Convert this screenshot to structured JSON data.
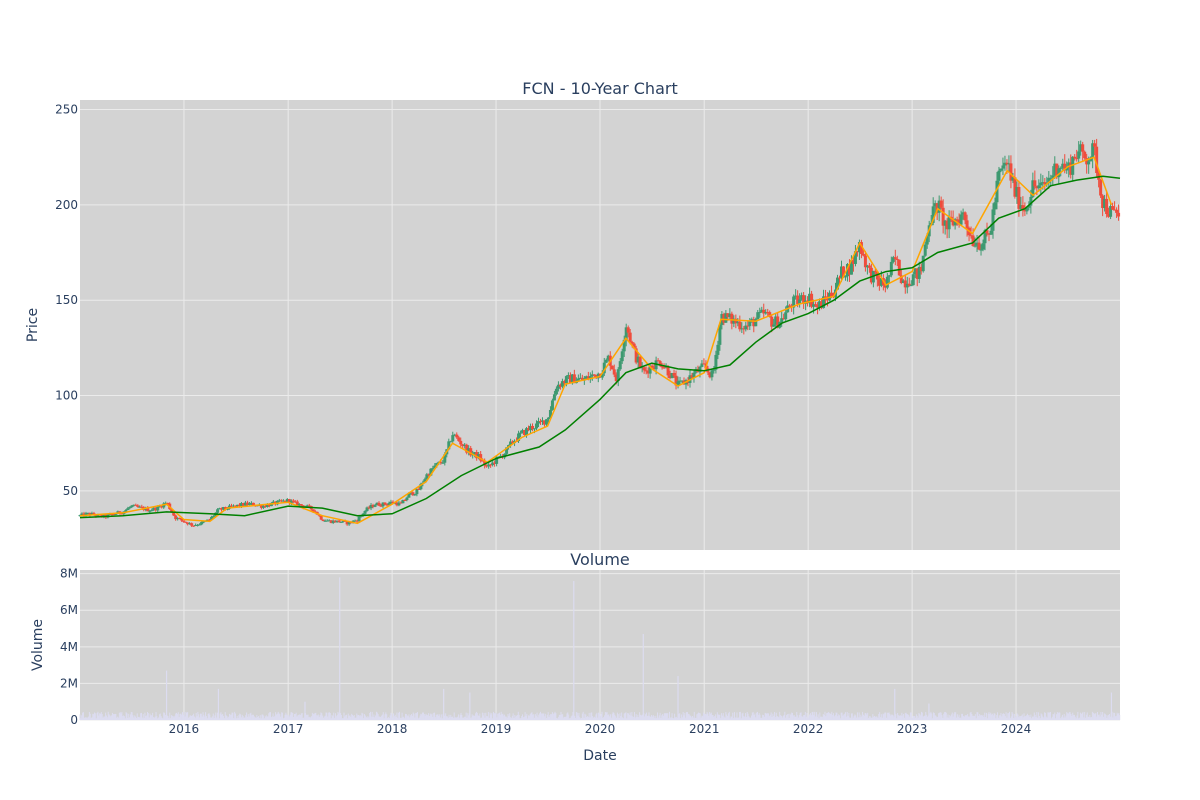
{
  "colors": {
    "background": "#ffffff",
    "plot_bg": "#d3d3d3",
    "grid": "#ebebeb",
    "text": "#2a3f5f",
    "up": "#3d9970",
    "down": "#ef4c3c",
    "ma_short": "#ffa500",
    "ma_long": "#008000",
    "volume_bar": "#dcdcf0"
  },
  "chart_data": [
    {
      "type": "candlestick",
      "title": "FCN - 10-Year Chart",
      "ylabel": "Price",
      "xlabel": "",
      "ylim": [
        19,
        255
      ],
      "xlim": [
        "2015-01-01",
        "2024-12-31"
      ],
      "x_tick_values": [
        "2016-01-01",
        "2017-01-01",
        "2018-01-01",
        "2019-01-01",
        "2020-01-01",
        "2021-01-01",
        "2022-01-01",
        "2023-01-01",
        "2024-01-01"
      ],
      "y_ticks": [
        50,
        100,
        150,
        200,
        250
      ],
      "grid": true,
      "series": [
        {
          "kind": "close",
          "points": [
            [
              "2015-01-01",
              37
            ],
            [
              "2015-02-01",
              38
            ],
            [
              "2015-03-01",
              37
            ],
            [
              "2015-04-01",
              36.5
            ],
            [
              "2015-05-01",
              38
            ],
            [
              "2015-06-01",
              39
            ],
            [
              "2015-07-01",
              42
            ],
            [
              "2015-08-01",
              41
            ],
            [
              "2015-09-01",
              40
            ],
            [
              "2015-10-01",
              41
            ],
            [
              "2015-11-01",
              44
            ],
            [
              "2015-12-01",
              36
            ],
            [
              "2016-01-01",
              34
            ],
            [
              "2016-02-01",
              32
            ],
            [
              "2016-03-01",
              33
            ],
            [
              "2016-04-01",
              35
            ],
            [
              "2016-05-01",
              40
            ],
            [
              "2016-06-01",
              41
            ],
            [
              "2016-07-01",
              42
            ],
            [
              "2016-08-01",
              43
            ],
            [
              "2016-09-01",
              43
            ],
            [
              "2016-10-01",
              42
            ],
            [
              "2016-11-01",
              43
            ],
            [
              "2016-12-01",
              44
            ],
            [
              "2017-01-01",
              45
            ],
            [
              "2017-02-01",
              43
            ],
            [
              "2017-03-01",
              42
            ],
            [
              "2017-04-01",
              40
            ],
            [
              "2017-05-01",
              35
            ],
            [
              "2017-06-01",
              34
            ],
            [
              "2017-07-01",
              34
            ],
            [
              "2017-08-01",
              33
            ],
            [
              "2017-09-01",
              35
            ],
            [
              "2017-10-01",
              40
            ],
            [
              "2017-11-01",
              43
            ],
            [
              "2017-12-01",
              43
            ],
            [
              "2018-01-01",
              44
            ],
            [
              "2018-02-01",
              43
            ],
            [
              "2018-03-01",
              48
            ],
            [
              "2018-04-01",
              50
            ],
            [
              "2018-05-01",
              58
            ],
            [
              "2018-06-01",
              63
            ],
            [
              "2018-07-01",
              66
            ],
            [
              "2018-08-01",
              80
            ],
            [
              "2018-09-01",
              75
            ],
            [
              "2018-10-01",
              70
            ],
            [
              "2018-11-01",
              68
            ],
            [
              "2018-12-01",
              62
            ],
            [
              "2019-01-01",
              66
            ],
            [
              "2019-02-01",
              70
            ],
            [
              "2019-03-01",
              76
            ],
            [
              "2019-04-01",
              80
            ],
            [
              "2019-05-01",
              83
            ],
            [
              "2019-06-01",
              85
            ],
            [
              "2019-07-01",
              88
            ],
            [
              "2019-08-01",
              105
            ],
            [
              "2019-09-01",
              108
            ],
            [
              "2019-10-01",
              109
            ],
            [
              "2019-11-01",
              108
            ],
            [
              "2019-12-01",
              110
            ],
            [
              "2020-01-01",
              112
            ],
            [
              "2020-02-01",
              120
            ],
            [
              "2020-03-01",
              108
            ],
            [
              "2020-04-01",
              138
            ],
            [
              "2020-05-01",
              122
            ],
            [
              "2020-06-01",
              112
            ],
            [
              "2020-07-01",
              116
            ],
            [
              "2020-08-01",
              118
            ],
            [
              "2020-09-01",
              112
            ],
            [
              "2020-10-01",
              105
            ],
            [
              "2020-11-01",
              108
            ],
            [
              "2020-12-01",
              112
            ],
            [
              "2021-01-01",
              115
            ],
            [
              "2021-02-01",
              110
            ],
            [
              "2021-03-01",
              142
            ],
            [
              "2021-04-01",
              140
            ],
            [
              "2021-05-01",
              138
            ],
            [
              "2021-06-01",
              136
            ],
            [
              "2021-07-01",
              140
            ],
            [
              "2021-08-01",
              143
            ],
            [
              "2021-09-01",
              138
            ],
            [
              "2021-10-01",
              140
            ],
            [
              "2021-11-01",
              148
            ],
            [
              "2021-12-01",
              150
            ],
            [
              "2022-01-01",
              152
            ],
            [
              "2022-02-01",
              146
            ],
            [
              "2022-03-01",
              150
            ],
            [
              "2022-04-01",
              155
            ],
            [
              "2022-05-01",
              165
            ],
            [
              "2022-06-01",
              168
            ],
            [
              "2022-07-01",
              180
            ],
            [
              "2022-08-01",
              165
            ],
            [
              "2022-09-01",
              160
            ],
            [
              "2022-10-01",
              158
            ],
            [
              "2022-11-01",
              172
            ],
            [
              "2022-12-01",
              160
            ],
            [
              "2023-01-01",
              162
            ],
            [
              "2023-02-01",
              165
            ],
            [
              "2023-03-01",
              192
            ],
            [
              "2023-04-01",
              200
            ],
            [
              "2023-05-01",
              188
            ],
            [
              "2023-06-01",
              192
            ],
            [
              "2023-07-01",
              195
            ],
            [
              "2023-08-01",
              182
            ],
            [
              "2023-09-01",
              180
            ],
            [
              "2023-10-01",
              185
            ],
            [
              "2023-11-01",
              215
            ],
            [
              "2023-12-01",
              222
            ],
            [
              "2024-01-01",
              205
            ],
            [
              "2024-02-01",
              198
            ],
            [
              "2024-03-01",
              210
            ],
            [
              "2024-04-01",
              208
            ],
            [
              "2024-05-01",
              215
            ],
            [
              "2024-06-01",
              222
            ],
            [
              "2024-07-01",
              218
            ],
            [
              "2024-08-01",
              228
            ],
            [
              "2024-09-01",
              225
            ],
            [
              "2024-10-01",
              228
            ],
            [
              "2024-11-01",
              202
            ],
            [
              "2024-12-01",
              195
            ]
          ]
        },
        {
          "kind": "ma_short",
          "points": [
            [
              "2015-01-01",
              37
            ],
            [
              "2015-06-01",
              38.5
            ],
            [
              "2015-11-01",
              43
            ],
            [
              "2016-01-01",
              35
            ],
            [
              "2016-04-01",
              34
            ],
            [
              "2016-06-01",
              41
            ],
            [
              "2017-01-01",
              44
            ],
            [
              "2017-05-01",
              37
            ],
            [
              "2017-09-01",
              33
            ],
            [
              "2018-01-01",
              43
            ],
            [
              "2018-05-01",
              55
            ],
            [
              "2018-08-01",
              75
            ],
            [
              "2018-12-01",
              65
            ],
            [
              "2019-04-01",
              78
            ],
            [
              "2019-07-01",
              84
            ],
            [
              "2019-09-01",
              106
            ],
            [
              "2020-01-01",
              110
            ],
            [
              "2020-04-01",
              130
            ],
            [
              "2020-07-01",
              114
            ],
            [
              "2020-10-01",
              105
            ],
            [
              "2021-01-01",
              112
            ],
            [
              "2021-03-01",
              140
            ],
            [
              "2021-07-01",
              139
            ],
            [
              "2021-12-01",
              148
            ],
            [
              "2022-04-01",
              152
            ],
            [
              "2022-07-01",
              180
            ],
            [
              "2022-10-01",
              158
            ],
            [
              "2023-01-01",
              165
            ],
            [
              "2023-04-01",
              198
            ],
            [
              "2023-08-01",
              185
            ],
            [
              "2023-12-01",
              218
            ],
            [
              "2024-03-01",
              205
            ],
            [
              "2024-07-01",
              220
            ],
            [
              "2024-10-01",
              225
            ],
            [
              "2024-12-01",
              200
            ]
          ]
        },
        {
          "kind": "ma_long",
          "points": [
            [
              "2015-01-01",
              36
            ],
            [
              "2015-06-01",
              37
            ],
            [
              "2015-11-01",
              39
            ],
            [
              "2016-04-01",
              38
            ],
            [
              "2016-08-01",
              37
            ],
            [
              "2017-01-01",
              42
            ],
            [
              "2017-05-01",
              41
            ],
            [
              "2017-09-01",
              37
            ],
            [
              "2018-01-01",
              38
            ],
            [
              "2018-05-01",
              46
            ],
            [
              "2018-09-01",
              58
            ],
            [
              "2019-01-01",
              67
            ],
            [
              "2019-06-01",
              73
            ],
            [
              "2019-09-01",
              82
            ],
            [
              "2020-01-01",
              98
            ],
            [
              "2020-04-01",
              112
            ],
            [
              "2020-07-01",
              117
            ],
            [
              "2020-10-01",
              114
            ],
            [
              "2021-01-01",
              113
            ],
            [
              "2021-04-01",
              116
            ],
            [
              "2021-07-01",
              128
            ],
            [
              "2021-10-01",
              138
            ],
            [
              "2022-01-01",
              143
            ],
            [
              "2022-04-01",
              150
            ],
            [
              "2022-07-01",
              160
            ],
            [
              "2022-10-01",
              165
            ],
            [
              "2023-01-01",
              167
            ],
            [
              "2023-04-01",
              175
            ],
            [
              "2023-08-01",
              180
            ],
            [
              "2023-11-01",
              193
            ],
            [
              "2024-02-01",
              198
            ],
            [
              "2024-05-01",
              210
            ],
            [
              "2024-08-01",
              213
            ],
            [
              "2024-11-01",
              215
            ],
            [
              "2024-12-31",
              214
            ]
          ]
        }
      ]
    },
    {
      "type": "bar",
      "title": "Volume",
      "ylabel": "Volume",
      "xlabel": "Date",
      "ylim": [
        0,
        8200000
      ],
      "y_ticks": [
        0,
        2000000,
        4000000,
        6000000,
        8000000
      ],
      "y_tick_labels": [
        "0",
        "2M",
        "4M",
        "6M",
        "8M"
      ],
      "x_tick_labels": [
        "2016",
        "2017",
        "2018",
        "2019",
        "2020",
        "2021",
        "2022",
        "2023",
        "2024"
      ],
      "spikes": [
        [
          "2015-11-01",
          2700000
        ],
        [
          "2016-05-01",
          1700000
        ],
        [
          "2017-03-01",
          1000000
        ],
        [
          "2017-07-01",
          7800000
        ],
        [
          "2018-07-01",
          1700000
        ],
        [
          "2018-10-01",
          1500000
        ],
        [
          "2019-10-01",
          7600000
        ],
        [
          "2020-06-01",
          4700000
        ],
        [
          "2020-10-01",
          2400000
        ],
        [
          "2022-11-01",
          1700000
        ],
        [
          "2023-03-01",
          900000
        ],
        [
          "2024-12-01",
          1500000
        ]
      ],
      "baseline": 300000
    }
  ]
}
